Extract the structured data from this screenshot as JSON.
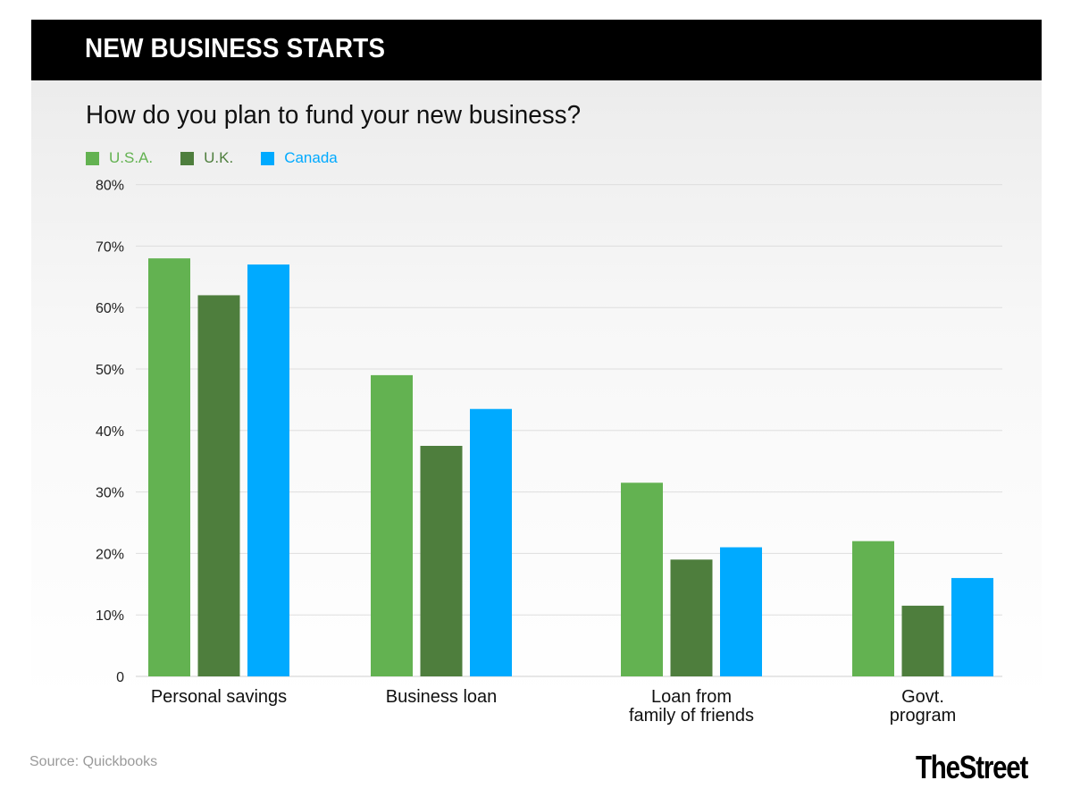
{
  "header": {
    "title": "NEW BUSINESS STARTS"
  },
  "footer": {
    "source": "Source: Quickbooks",
    "brand": "TheStreet"
  },
  "chart_data": {
    "type": "bar",
    "title": "How do you plan to fund your new business?",
    "xlabel": "",
    "ylabel": "",
    "categories": [
      [
        "Personal savings"
      ],
      [
        "Business loan"
      ],
      [
        "Loan from",
        "family of friends"
      ],
      [
        "Govt.",
        "program"
      ]
    ],
    "series": [
      {
        "name": "U.S.A.",
        "color": "#63b251",
        "values": [
          68,
          49,
          31.5,
          22
        ]
      },
      {
        "name": "U.K.",
        "color": "#4e7e3d",
        "values": [
          62,
          37.5,
          19,
          11.5
        ]
      },
      {
        "name": "Canada",
        "color": "#00aaff",
        "values": [
          67,
          43.5,
          21,
          16
        ]
      }
    ],
    "yticks": [
      {
        "value": 0,
        "label": "0"
      },
      {
        "value": 10,
        "label": "10%"
      },
      {
        "value": 20,
        "label": "20%"
      },
      {
        "value": 30,
        "label": "30%"
      },
      {
        "value": 40,
        "label": "40%"
      },
      {
        "value": 50,
        "label": "50%"
      },
      {
        "value": 60,
        "label": "60%"
      },
      {
        "value": 70,
        "label": "70%"
      },
      {
        "value": 80,
        "label": "80%"
      }
    ],
    "ylim": [
      0,
      80
    ],
    "grid": true,
    "legend_position": "top-left"
  }
}
